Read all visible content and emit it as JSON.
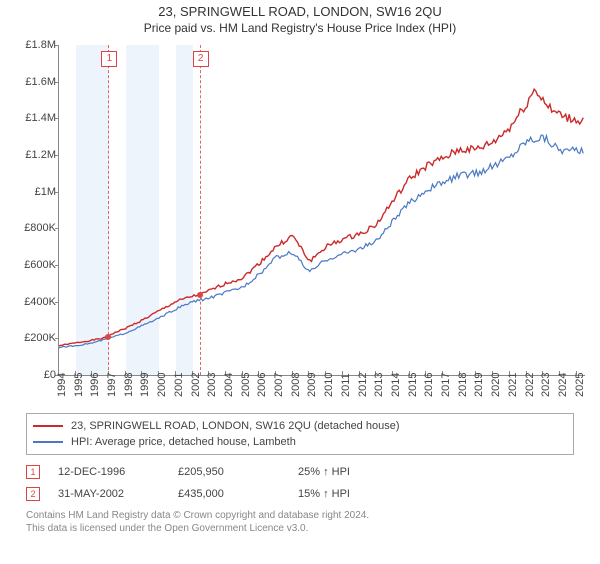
{
  "title": "23, SPRINGWELL ROAD, LONDON, SW16 2QU",
  "subtitle": "Price paid vs. HM Land Registry's House Price Index (HPI)",
  "chart": {
    "type": "line",
    "background_color": "#ffffff",
    "band_color": "#eef4fb",
    "axis_color": "#888888",
    "text_color": "#444444",
    "title_fontsize": 13,
    "label_fontsize": 11,
    "x_min": 1994,
    "x_max": 2025.5,
    "x_ticks": [
      1994,
      1995,
      1996,
      1997,
      1998,
      1999,
      2000,
      2001,
      2002,
      2003,
      2004,
      2005,
      2006,
      2007,
      2008,
      2009,
      2010,
      2011,
      2012,
      2013,
      2014,
      2015,
      2016,
      2017,
      2018,
      2019,
      2020,
      2021,
      2022,
      2023,
      2024,
      2025
    ],
    "y_min": 0,
    "y_max": 1800000,
    "y_ticks": [
      0,
      200000,
      400000,
      600000,
      800000,
      1000000,
      1200000,
      1400000,
      1600000,
      1800000
    ],
    "y_tick_labels": [
      "£0",
      "£200K",
      "£400K",
      "£600K",
      "£800K",
      "£1M",
      "£1.2M",
      "£1.4M",
      "£1.6M",
      "£1.8M"
    ],
    "band_years": [
      1995,
      1996,
      1998,
      1999,
      2001
    ],
    "series": [
      {
        "name": "price_paid",
        "label": "23, SPRINGWELL ROAD, LONDON, SW16 2QU (detached house)",
        "color": "#cc2a2a",
        "line_width": 1.4,
        "x": [
          1994,
          1995,
          1996,
          1996.96,
          1997,
          1998,
          1999,
          2000,
          2001,
          2002,
          2002.42,
          2003,
          2004,
          2005,
          2006,
          2007,
          2008,
          2009,
          2010,
          2011,
          2012,
          2013,
          2014,
          2015,
          2016,
          2017,
          2018,
          2019,
          2020,
          2021,
          2022,
          2022.5,
          2023,
          2023.5,
          2024,
          2024.5,
          2025
        ],
        "y": [
          160000,
          175000,
          190000,
          205950,
          218000,
          255000,
          300000,
          350000,
          400000,
          430000,
          435000,
          460000,
          500000,
          530000,
          610000,
          700000,
          760000,
          620000,
          700000,
          740000,
          770000,
          820000,
          950000,
          1070000,
          1140000,
          1180000,
          1230000,
          1230000,
          1270000,
          1350000,
          1480000,
          1560000,
          1500000,
          1440000,
          1420000,
          1400000,
          1390000
        ]
      },
      {
        "name": "hpi",
        "label": "HPI: Average price, detached house, Lambeth",
        "color": "#4a78c4",
        "line_width": 1.2,
        "x": [
          1994,
          1995,
          1996,
          1997,
          1998,
          1999,
          2000,
          2001,
          2002,
          2003,
          2004,
          2005,
          2006,
          2007,
          2008,
          2009,
          2010,
          2011,
          2012,
          2013,
          2014,
          2015,
          2016,
          2017,
          2018,
          2019,
          2020,
          2021,
          2022,
          2023,
          2024,
          2025
        ],
        "y": [
          150000,
          160000,
          175000,
          200000,
          230000,
          270000,
          310000,
          360000,
          400000,
          420000,
          450000,
          480000,
          550000,
          640000,
          670000,
          560000,
          630000,
          660000,
          690000,
          730000,
          840000,
          940000,
          1010000,
          1050000,
          1090000,
          1100000,
          1140000,
          1190000,
          1280000,
          1300000,
          1230000,
          1220000
        ]
      }
    ],
    "markers": [
      {
        "id": "1",
        "x": 1996.96,
        "y": 205950,
        "dash_color": "#d66",
        "box_color": "#d44"
      },
      {
        "id": "2",
        "x": 2002.42,
        "y": 435000,
        "dash_color": "#d66",
        "box_color": "#d44"
      }
    ]
  },
  "legend": {
    "items": [
      {
        "color": "#cc2a2a",
        "label": "23, SPRINGWELL ROAD, LONDON, SW16 2QU (detached house)"
      },
      {
        "color": "#4a78c4",
        "label": "HPI: Average price, detached house, Lambeth"
      }
    ]
  },
  "transactions": [
    {
      "id": "1",
      "date": "12-DEC-1996",
      "price": "£205,950",
      "delta": "25% ↑ HPI"
    },
    {
      "id": "2",
      "date": "31-MAY-2002",
      "price": "£435,000",
      "delta": "15% ↑ HPI"
    }
  ],
  "footer": {
    "line1": "Contains HM Land Registry data © Crown copyright and database right 2024.",
    "line2": "This data is licensed under the Open Government Licence v3.0."
  }
}
